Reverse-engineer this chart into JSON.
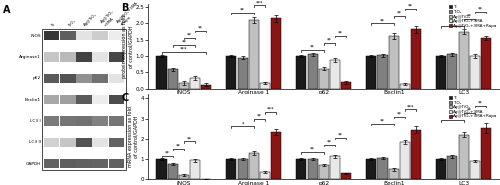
{
  "panel_B": {
    "categories": [
      "iNOS",
      "Arginase 1",
      "p62",
      "Beclin1",
      "LC3"
    ],
    "ylabel": "protein expression as fold\nof control/GAPDH",
    "ylim": [
      0,
      2.6
    ],
    "yticks": [
      0.0,
      0.5,
      1.0,
      1.5,
      2.0,
      2.5
    ],
    "values": {
      "Ti": [
        1.0,
        1.0,
        1.0,
        1.0,
        1.0
      ],
      "TiO2": [
        0.6,
        0.95,
        1.05,
        1.02,
        1.05
      ],
      "AgTiO2": [
        0.18,
        2.1,
        0.62,
        1.6,
        1.75
      ],
      "AgTiO2_3MA": [
        0.32,
        0.18,
        0.88,
        0.15,
        1.0
      ],
      "AgTiO2_3MA_Rapa": [
        0.13,
        2.15,
        0.2,
        1.82,
        1.55
      ]
    },
    "errors": {
      "Ti": [
        0.04,
        0.04,
        0.04,
        0.04,
        0.04
      ],
      "TiO2": [
        0.05,
        0.05,
        0.05,
        0.05,
        0.05
      ],
      "AgTiO2": [
        0.06,
        0.1,
        0.06,
        0.09,
        0.09
      ],
      "AgTiO2_3MA": [
        0.06,
        0.04,
        0.06,
        0.04,
        0.06
      ],
      "AgTiO2_3MA_Rapa": [
        0.04,
        0.1,
        0.04,
        0.1,
        0.07
      ]
    },
    "sig_lines": [
      {
        "cat": "iNOS",
        "pairs": [
          [
            "Ti",
            "AgTiO2_3MA_Rapa",
            "***"
          ],
          [
            "TiO2",
            "AgTiO2_3MA",
            "**"
          ],
          [
            "AgTiO2",
            "AgTiO2_3MA",
            "**"
          ],
          [
            "AgTiO2_3MA",
            "AgTiO2_3MA_Rapa",
            "**"
          ]
        ]
      },
      {
        "cat": "Arginase 1",
        "pairs": [
          [
            "Ti",
            "AgTiO2",
            "**"
          ],
          [
            "AgTiO2",
            "AgTiO2_3MA",
            "***"
          ],
          [
            "AgTiO2_3MA",
            "AgTiO2_3MA_Rapa",
            "***"
          ]
        ]
      },
      {
        "cat": "p62",
        "pairs": [
          [
            "Ti",
            "AgTiO2",
            "**"
          ],
          [
            "AgTiO2",
            "AgTiO2_3MA",
            "**"
          ],
          [
            "AgTiO2_3MA",
            "AgTiO2_3MA_Rapa",
            "**"
          ]
        ]
      },
      {
        "cat": "Beclin1",
        "pairs": [
          [
            "Ti",
            "AgTiO2",
            "**"
          ],
          [
            "AgTiO2",
            "AgTiO2_3MA",
            "**"
          ],
          [
            "AgTiO2_3MA",
            "AgTiO2_3MA_Rapa",
            "**"
          ]
        ]
      },
      {
        "cat": "LC3",
        "pairs": [
          [
            "Ti",
            "AgTiO2",
            "**"
          ],
          [
            "AgTiO2",
            "AgTiO2_3MA",
            "**"
          ],
          [
            "AgTiO2_3MA",
            "AgTiO2_3MA_Rapa",
            "**"
          ]
        ]
      }
    ]
  },
  "panel_C": {
    "categories": [
      "iNOS",
      "Arginase 1",
      "p62",
      "Beclin1",
      "LC3"
    ],
    "ylabel": "mRNA expression as fold\nof control/GAPDH",
    "ylim": [
      0,
      4.2
    ],
    "yticks": [
      0,
      1,
      2,
      3,
      4
    ],
    "values": {
      "Ti": [
        1.0,
        1.0,
        1.0,
        1.0,
        1.0
      ],
      "TiO2": [
        0.78,
        1.0,
        1.0,
        1.05,
        1.15
      ],
      "AgTiO2": [
        0.22,
        1.3,
        0.72,
        0.5,
        2.2
      ],
      "AgTiO2_3MA": [
        0.95,
        0.38,
        1.15,
        1.85,
        0.9
      ],
      "AgTiO2_3MA_Rapa": [
        0.02,
        2.35,
        0.3,
        2.45,
        2.55
      ]
    },
    "errors": {
      "Ti": [
        0.04,
        0.04,
        0.04,
        0.04,
        0.06
      ],
      "TiO2": [
        0.05,
        0.05,
        0.05,
        0.05,
        0.08
      ],
      "AgTiO2": [
        0.04,
        0.09,
        0.06,
        0.07,
        0.12
      ],
      "AgTiO2_3MA": [
        0.07,
        0.05,
        0.07,
        0.1,
        0.06
      ],
      "AgTiO2_3MA_Rapa": [
        0.02,
        0.14,
        0.04,
        0.17,
        0.25
      ]
    },
    "sig_lines": [
      {
        "cat": "iNOS",
        "pairs": [
          [
            "Ti",
            "TiO2",
            "**"
          ],
          [
            "TiO2",
            "AgTiO2",
            "**"
          ],
          [
            "AgTiO2",
            "AgTiO2_3MA",
            "**"
          ]
        ]
      },
      {
        "cat": "Arginase 1",
        "pairs": [
          [
            "Ti",
            "AgTiO2",
            "*"
          ],
          [
            "AgTiO2",
            "AgTiO2_3MA",
            "**"
          ],
          [
            "AgTiO2_3MA",
            "AgTiO2_3MA_Rapa",
            "***"
          ]
        ]
      },
      {
        "cat": "p62",
        "pairs": [
          [
            "Ti",
            "AgTiO2",
            "**"
          ],
          [
            "AgTiO2",
            "AgTiO2_3MA",
            "**"
          ],
          [
            "AgTiO2_3MA",
            "AgTiO2_3MA_Rapa",
            "**"
          ]
        ]
      },
      {
        "cat": "Beclin1",
        "pairs": [
          [
            "Ti",
            "AgTiO2",
            "**"
          ],
          [
            "AgTiO2",
            "AgTiO2_3MA",
            "**"
          ],
          [
            "AgTiO2_3MA",
            "AgTiO2_3MA_Rapa",
            "***"
          ]
        ]
      },
      {
        "cat": "LC3",
        "pairs": [
          [
            "Ti",
            "AgTiO2",
            "**"
          ],
          [
            "AgTiO2",
            "AgTiO2_3MA",
            "**"
          ],
          [
            "AgTiO2_3MA",
            "AgTiO2_3MA_Rapa",
            "**"
          ]
        ]
      }
    ]
  },
  "colors": {
    "Ti": "#1a1a1a",
    "TiO2": "#808080",
    "AgTiO2": "#c0c0c0",
    "AgTiO2_3MA": "#e8e8e8",
    "AgTiO2_3MA_Rapa": "#8b1515"
  },
  "legend_labels": {
    "Ti": "Ti",
    "TiO2": "TiO₂",
    "AgTiO2": "Ag@TiO₂",
    "AgTiO2_3MA": "Ag@TiO₂+3MA",
    "AgTiO2_3MA_Rapa": "Ag@TiO₂+3MA+Rapa"
  },
  "western_bands": [
    "iNOS",
    "Arginase1",
    "p62",
    "Beclin1",
    "LC3 I",
    "LC3 II",
    "GAPDH"
  ],
  "western_intensities": {
    "iNOS": [
      0.88,
      0.7,
      0.12,
      0.22,
      0.08
    ],
    "Arginase1": [
      0.25,
      0.3,
      0.82,
      0.12,
      0.8
    ],
    "p62": [
      0.72,
      0.75,
      0.48,
      0.62,
      0.12
    ],
    "Beclin1": [
      0.38,
      0.42,
      0.72,
      0.08,
      0.78
    ],
    "LC3 I": [
      0.58,
      0.6,
      0.62,
      0.55,
      0.6
    ],
    "LC3 II": [
      0.2,
      0.25,
      0.75,
      0.12,
      0.68
    ],
    "GAPDH": [
      0.68,
      0.7,
      0.69,
      0.68,
      0.69
    ]
  },
  "western_col_labels": [
    "Ti",
    "TiO₂",
    "Ag@TiO₂",
    "Ag@TiO₂\n+3MA",
    "Ag@TiO₂+3MA\n+Rapa"
  ]
}
